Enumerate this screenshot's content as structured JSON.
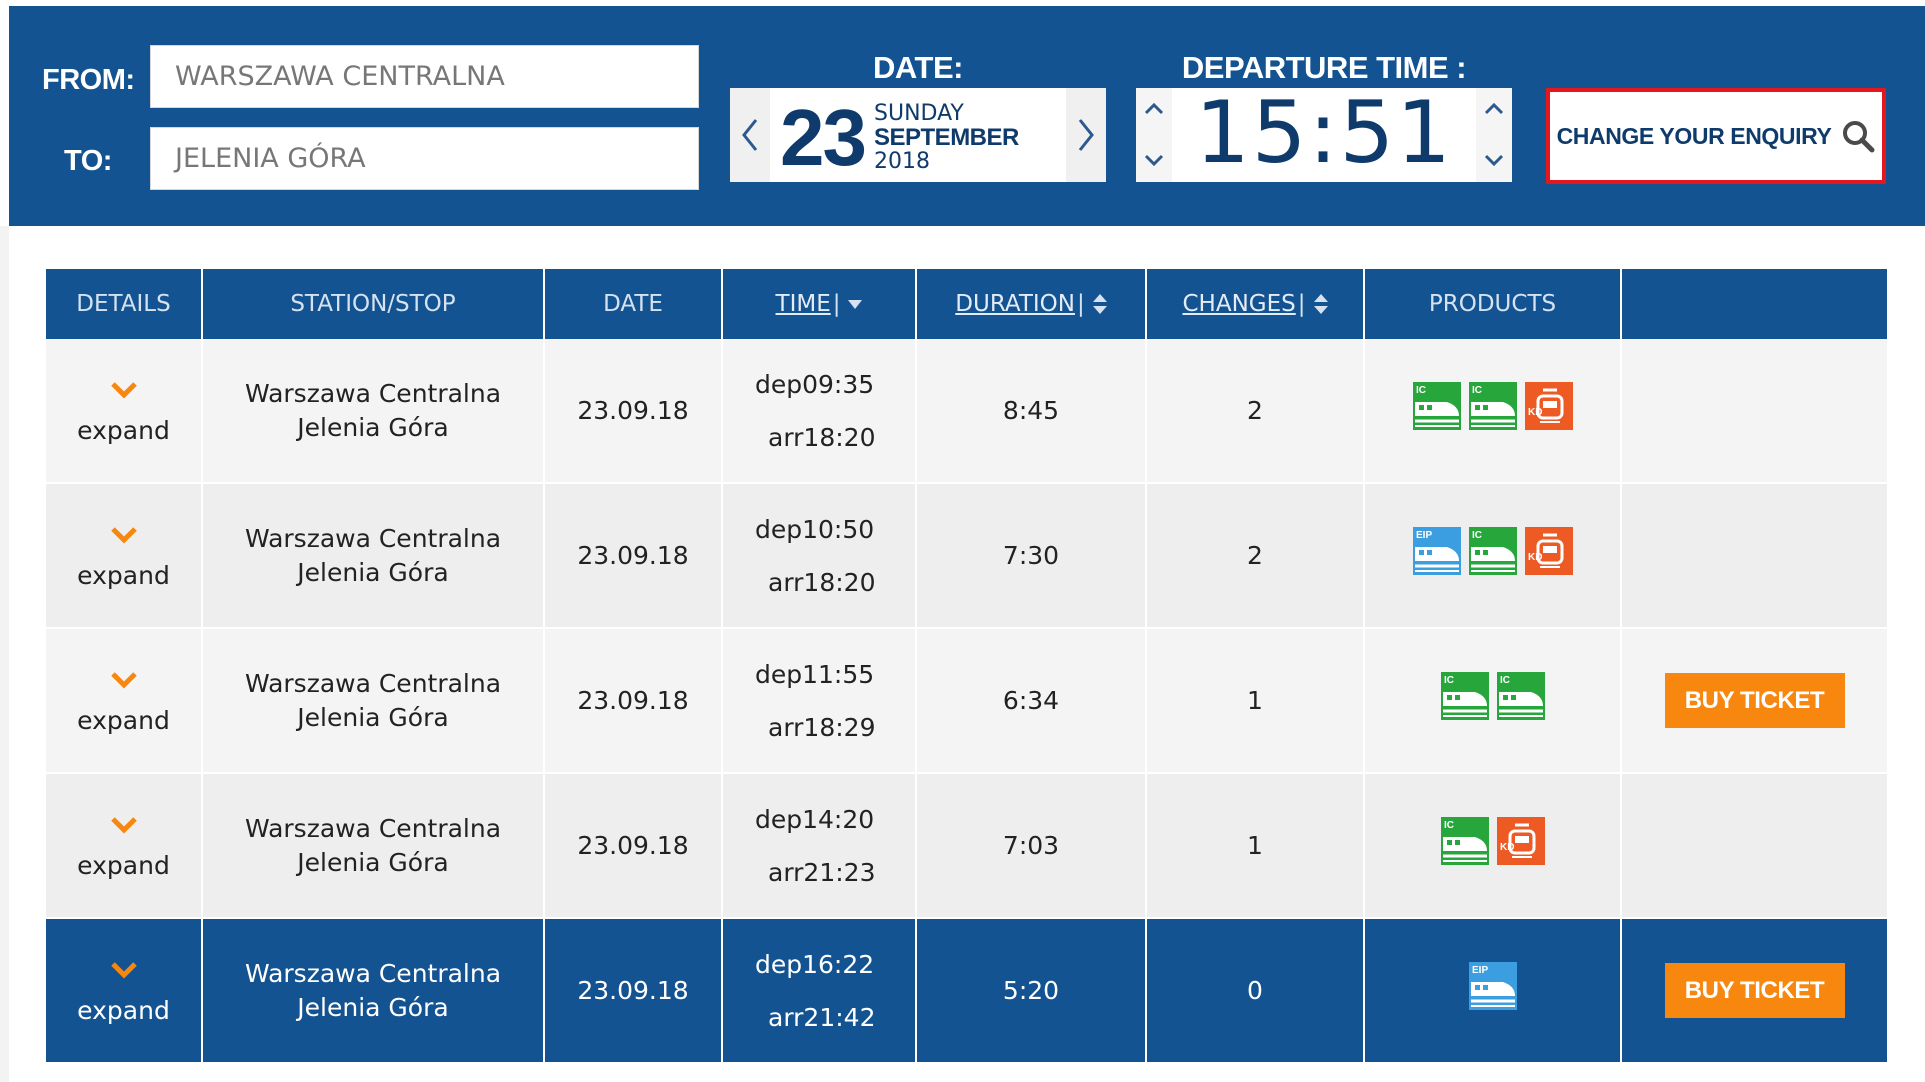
{
  "search": {
    "from_label": "FROM:",
    "to_label": "TO:",
    "from_value": "WARSZAWA CENTRALNA",
    "to_value": "JELENIA GÓRA",
    "date_label": "DATE:",
    "date_day": "23",
    "date_weekday": "SUNDAY",
    "date_month": "SEPTEMBER",
    "date_year": "2018",
    "time_label": "DEPARTURE TIME :",
    "time_value": "15:51",
    "enquiry_label": "CHANGE YOUR ENQUIRY"
  },
  "table": {
    "columns": {
      "details": "DETAILS",
      "station": "STATION/STOP",
      "date": "DATE",
      "time": "TIME",
      "duration": "DURATION",
      "changes": "CHANGES",
      "products": "PRODUCTS"
    },
    "rows": [
      {
        "expand": "expand",
        "from": "Warszawa Centralna",
        "to": "Jelenia Góra",
        "date": "23.09.18",
        "dep": "dep09:35",
        "arr": "arr18:20",
        "duration": "8:45",
        "changes": "2",
        "products": [
          "IC",
          "IC",
          "KD"
        ],
        "buy": "",
        "selected": false
      },
      {
        "expand": "expand",
        "from": "Warszawa Centralna",
        "to": "Jelenia Góra",
        "date": "23.09.18",
        "dep": "dep10:50",
        "arr": "arr18:20",
        "duration": "7:30",
        "changes": "2",
        "products": [
          "EIP",
          "IC",
          "KD"
        ],
        "buy": "",
        "selected": false
      },
      {
        "expand": "expand",
        "from": "Warszawa Centralna",
        "to": "Jelenia Góra",
        "date": "23.09.18",
        "dep": "dep11:55",
        "arr": "arr18:29",
        "duration": "6:34",
        "changes": "1",
        "products": [
          "IC",
          "IC"
        ],
        "buy": "BUY TICKET",
        "selected": false
      },
      {
        "expand": "expand",
        "from": "Warszawa Centralna",
        "to": "Jelenia Góra",
        "date": "23.09.18",
        "dep": "dep14:20",
        "arr": "arr21:23",
        "duration": "7:03",
        "changes": "1",
        "products": [
          "IC",
          "KD"
        ],
        "buy": "",
        "selected": false
      },
      {
        "expand": "expand",
        "from": "Warszawa Centralna",
        "to": "Jelenia Góra",
        "date": "23.09.18",
        "dep": "dep16:22",
        "arr": "arr21:42",
        "duration": "5:20",
        "changes": "0",
        "products": [
          "EIP"
        ],
        "buy": "BUY TICKET",
        "selected": true
      }
    ]
  },
  "colors": {
    "brand_blue": "#145391",
    "accent_orange": "#f7870f",
    "alert_red": "#e4161e",
    "ic_green": "#27a63c",
    "kd_orange": "#ee5a24",
    "eip_blue": "#3b9ee0"
  }
}
